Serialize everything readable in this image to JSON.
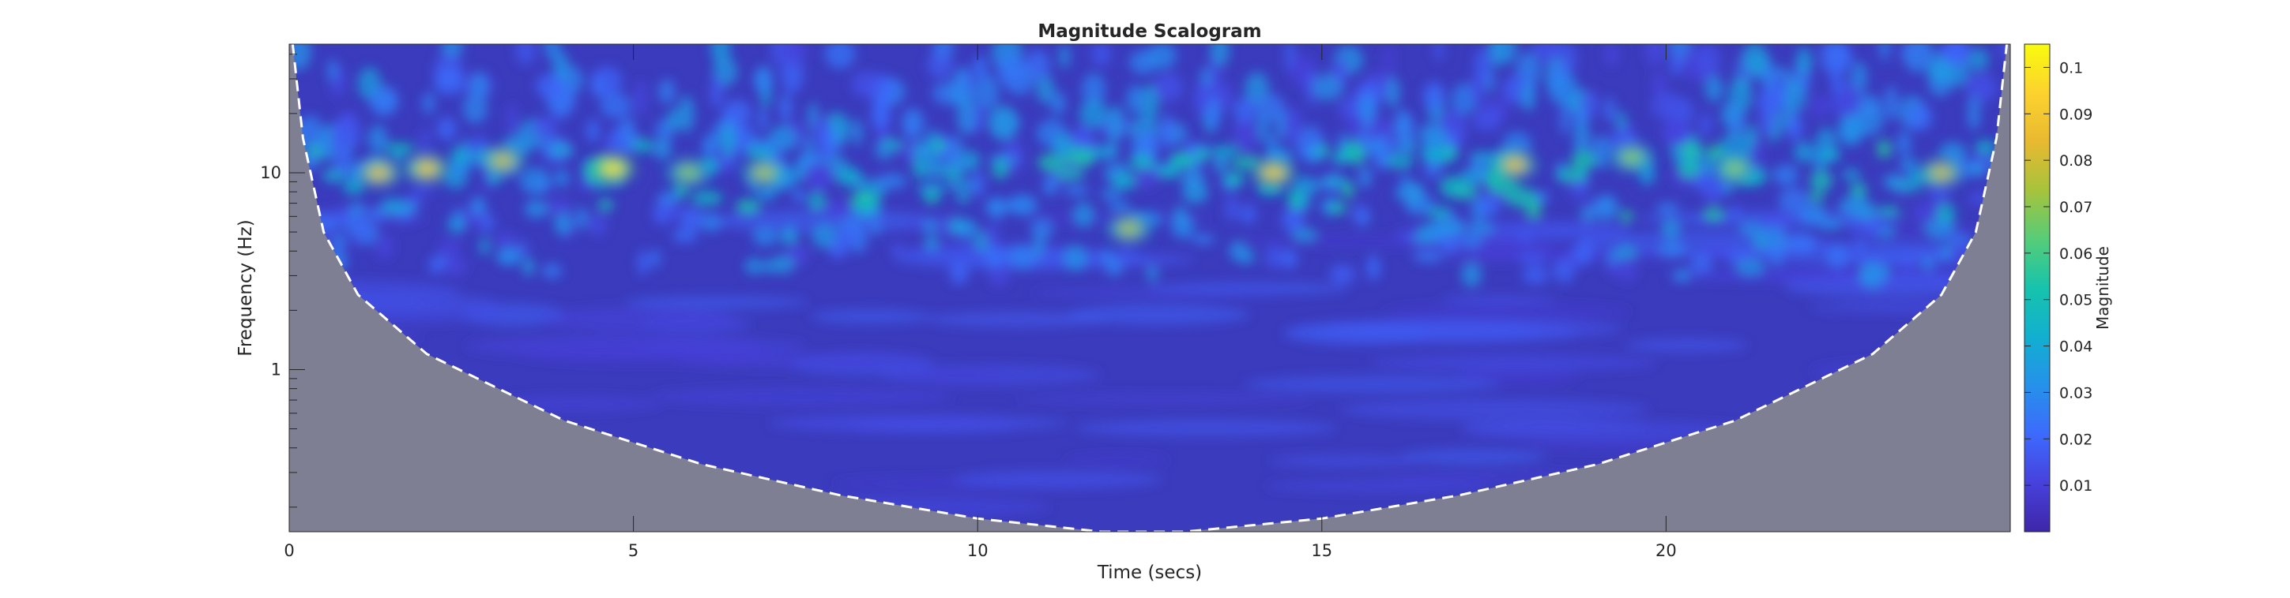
{
  "chart_data": {
    "type": "heatmap",
    "title": "Magnitude Scalogram",
    "xlabel": "Time (secs)",
    "ylabel": "Frequency (Hz)",
    "xlim": [
      0,
      25
    ],
    "ylim": [
      0.15,
      45
    ],
    "y_scale": "log",
    "x_ticks": [
      {
        "value": 0,
        "label": "0"
      },
      {
        "value": 5,
        "label": "5"
      },
      {
        "value": 10,
        "label": "10"
      },
      {
        "value": 15,
        "label": "15"
      },
      {
        "value": 20,
        "label": "20"
      }
    ],
    "y_ticks": [
      {
        "value": 1,
        "label": "1"
      },
      {
        "value": 10,
        "label": "10"
      }
    ],
    "colorbar": {
      "label": "Magnitude",
      "range": [
        0,
        0.105
      ],
      "ticks": [
        {
          "value": 0.01,
          "label": "0.01"
        },
        {
          "value": 0.02,
          "label": "0.02"
        },
        {
          "value": 0.03,
          "label": "0.03"
        },
        {
          "value": 0.04,
          "label": "0.04"
        },
        {
          "value": 0.05,
          "label": "0.05"
        },
        {
          "value": 0.06,
          "label": "0.06"
        },
        {
          "value": 0.07,
          "label": "0.07"
        },
        {
          "value": 0.08,
          "label": "0.08"
        },
        {
          "value": 0.09,
          "label": "0.09"
        },
        {
          "value": 0.1,
          "label": "0.1"
        }
      ],
      "colormap": "parula"
    },
    "cone_of_influence": {
      "style": "white dashed",
      "outside_fill": "#7f7f94",
      "points": [
        {
          "t": 0.05,
          "f": 45
        },
        {
          "t": 0.2,
          "f": 15
        },
        {
          "t": 0.5,
          "f": 5
        },
        {
          "t": 1,
          "f": 2.4
        },
        {
          "t": 2,
          "f": 1.2
        },
        {
          "t": 4,
          "f": 0.55
        },
        {
          "t": 6,
          "f": 0.33
        },
        {
          "t": 8,
          "f": 0.23
        },
        {
          "t": 10,
          "f": 0.175
        },
        {
          "t": 11.8,
          "f": 0.15
        },
        {
          "t": 13.0,
          "f": 0.15
        },
        {
          "t": 15,
          "f": 0.175
        },
        {
          "t": 17,
          "f": 0.23
        },
        {
          "t": 19,
          "f": 0.33
        },
        {
          "t": 21,
          "f": 0.55
        },
        {
          "t": 23,
          "f": 1.2
        },
        {
          "t": 24,
          "f": 2.4
        },
        {
          "t": 24.5,
          "f": 5
        },
        {
          "t": 24.8,
          "f": 15
        },
        {
          "t": 24.95,
          "f": 45
        }
      ]
    },
    "hotspots": [
      {
        "t": 1.3,
        "f": 10,
        "magnitude": 0.085
      },
      {
        "t": 2.0,
        "f": 10.5,
        "magnitude": 0.09
      },
      {
        "t": 3.1,
        "f": 11.5,
        "magnitude": 0.08
      },
      {
        "t": 4.7,
        "f": 10.5,
        "magnitude": 0.1
      },
      {
        "t": 5.8,
        "f": 10,
        "magnitude": 0.07
      },
      {
        "t": 6.9,
        "f": 10,
        "magnitude": 0.075
      },
      {
        "t": 12.2,
        "f": 5.2,
        "magnitude": 0.075
      },
      {
        "t": 14.3,
        "f": 10,
        "magnitude": 0.09
      },
      {
        "t": 17.8,
        "f": 11,
        "magnitude": 0.085
      },
      {
        "t": 19.5,
        "f": 12,
        "magnitude": 0.07
      },
      {
        "t": 21.0,
        "f": 10.5,
        "magnitude": 0.07
      },
      {
        "t": 24.0,
        "f": 10,
        "magnitude": 0.08
      }
    ]
  }
}
